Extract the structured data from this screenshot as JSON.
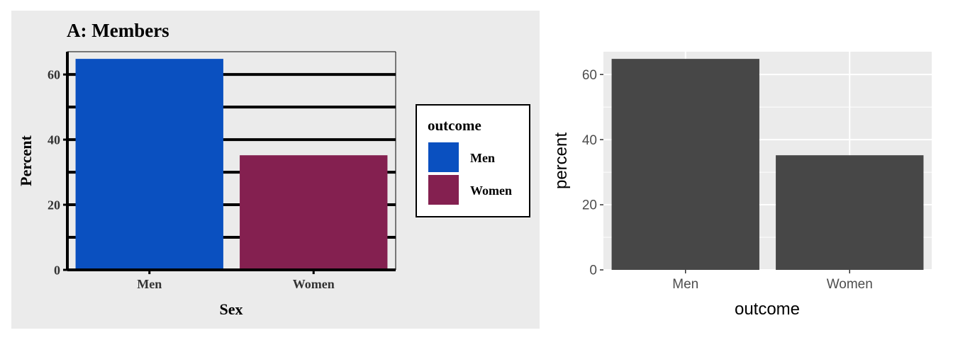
{
  "chart_data": [
    {
      "type": "bar",
      "title": "A: Members",
      "xlabel": "Sex",
      "ylabel": "Percent",
      "categories": [
        "Men",
        "Women"
      ],
      "values": [
        64.8,
        35.2
      ],
      "ylim": [
        0,
        67
      ],
      "yticks": [
        0,
        20,
        40,
        60
      ],
      "grid": true,
      "bar_colors": [
        "#0a50c0",
        "#842050"
      ],
      "panel_background": "#ebebeb",
      "legend": {
        "title": "outcome",
        "placement": "right",
        "items": [
          {
            "label": "Men",
            "color": "#0a50c0"
          },
          {
            "label": "Women",
            "color": "#842050"
          }
        ]
      }
    },
    {
      "type": "bar",
      "xlabel": "outcome",
      "ylabel": "percent",
      "categories": [
        "Men",
        "Women"
      ],
      "values": [
        64.8,
        35.2
      ],
      "ylim": [
        0,
        67
      ],
      "yticks": [
        0,
        20,
        40,
        60
      ],
      "grid": true,
      "bar_color": "#474747",
      "panel_background": "#ebebeb"
    }
  ]
}
